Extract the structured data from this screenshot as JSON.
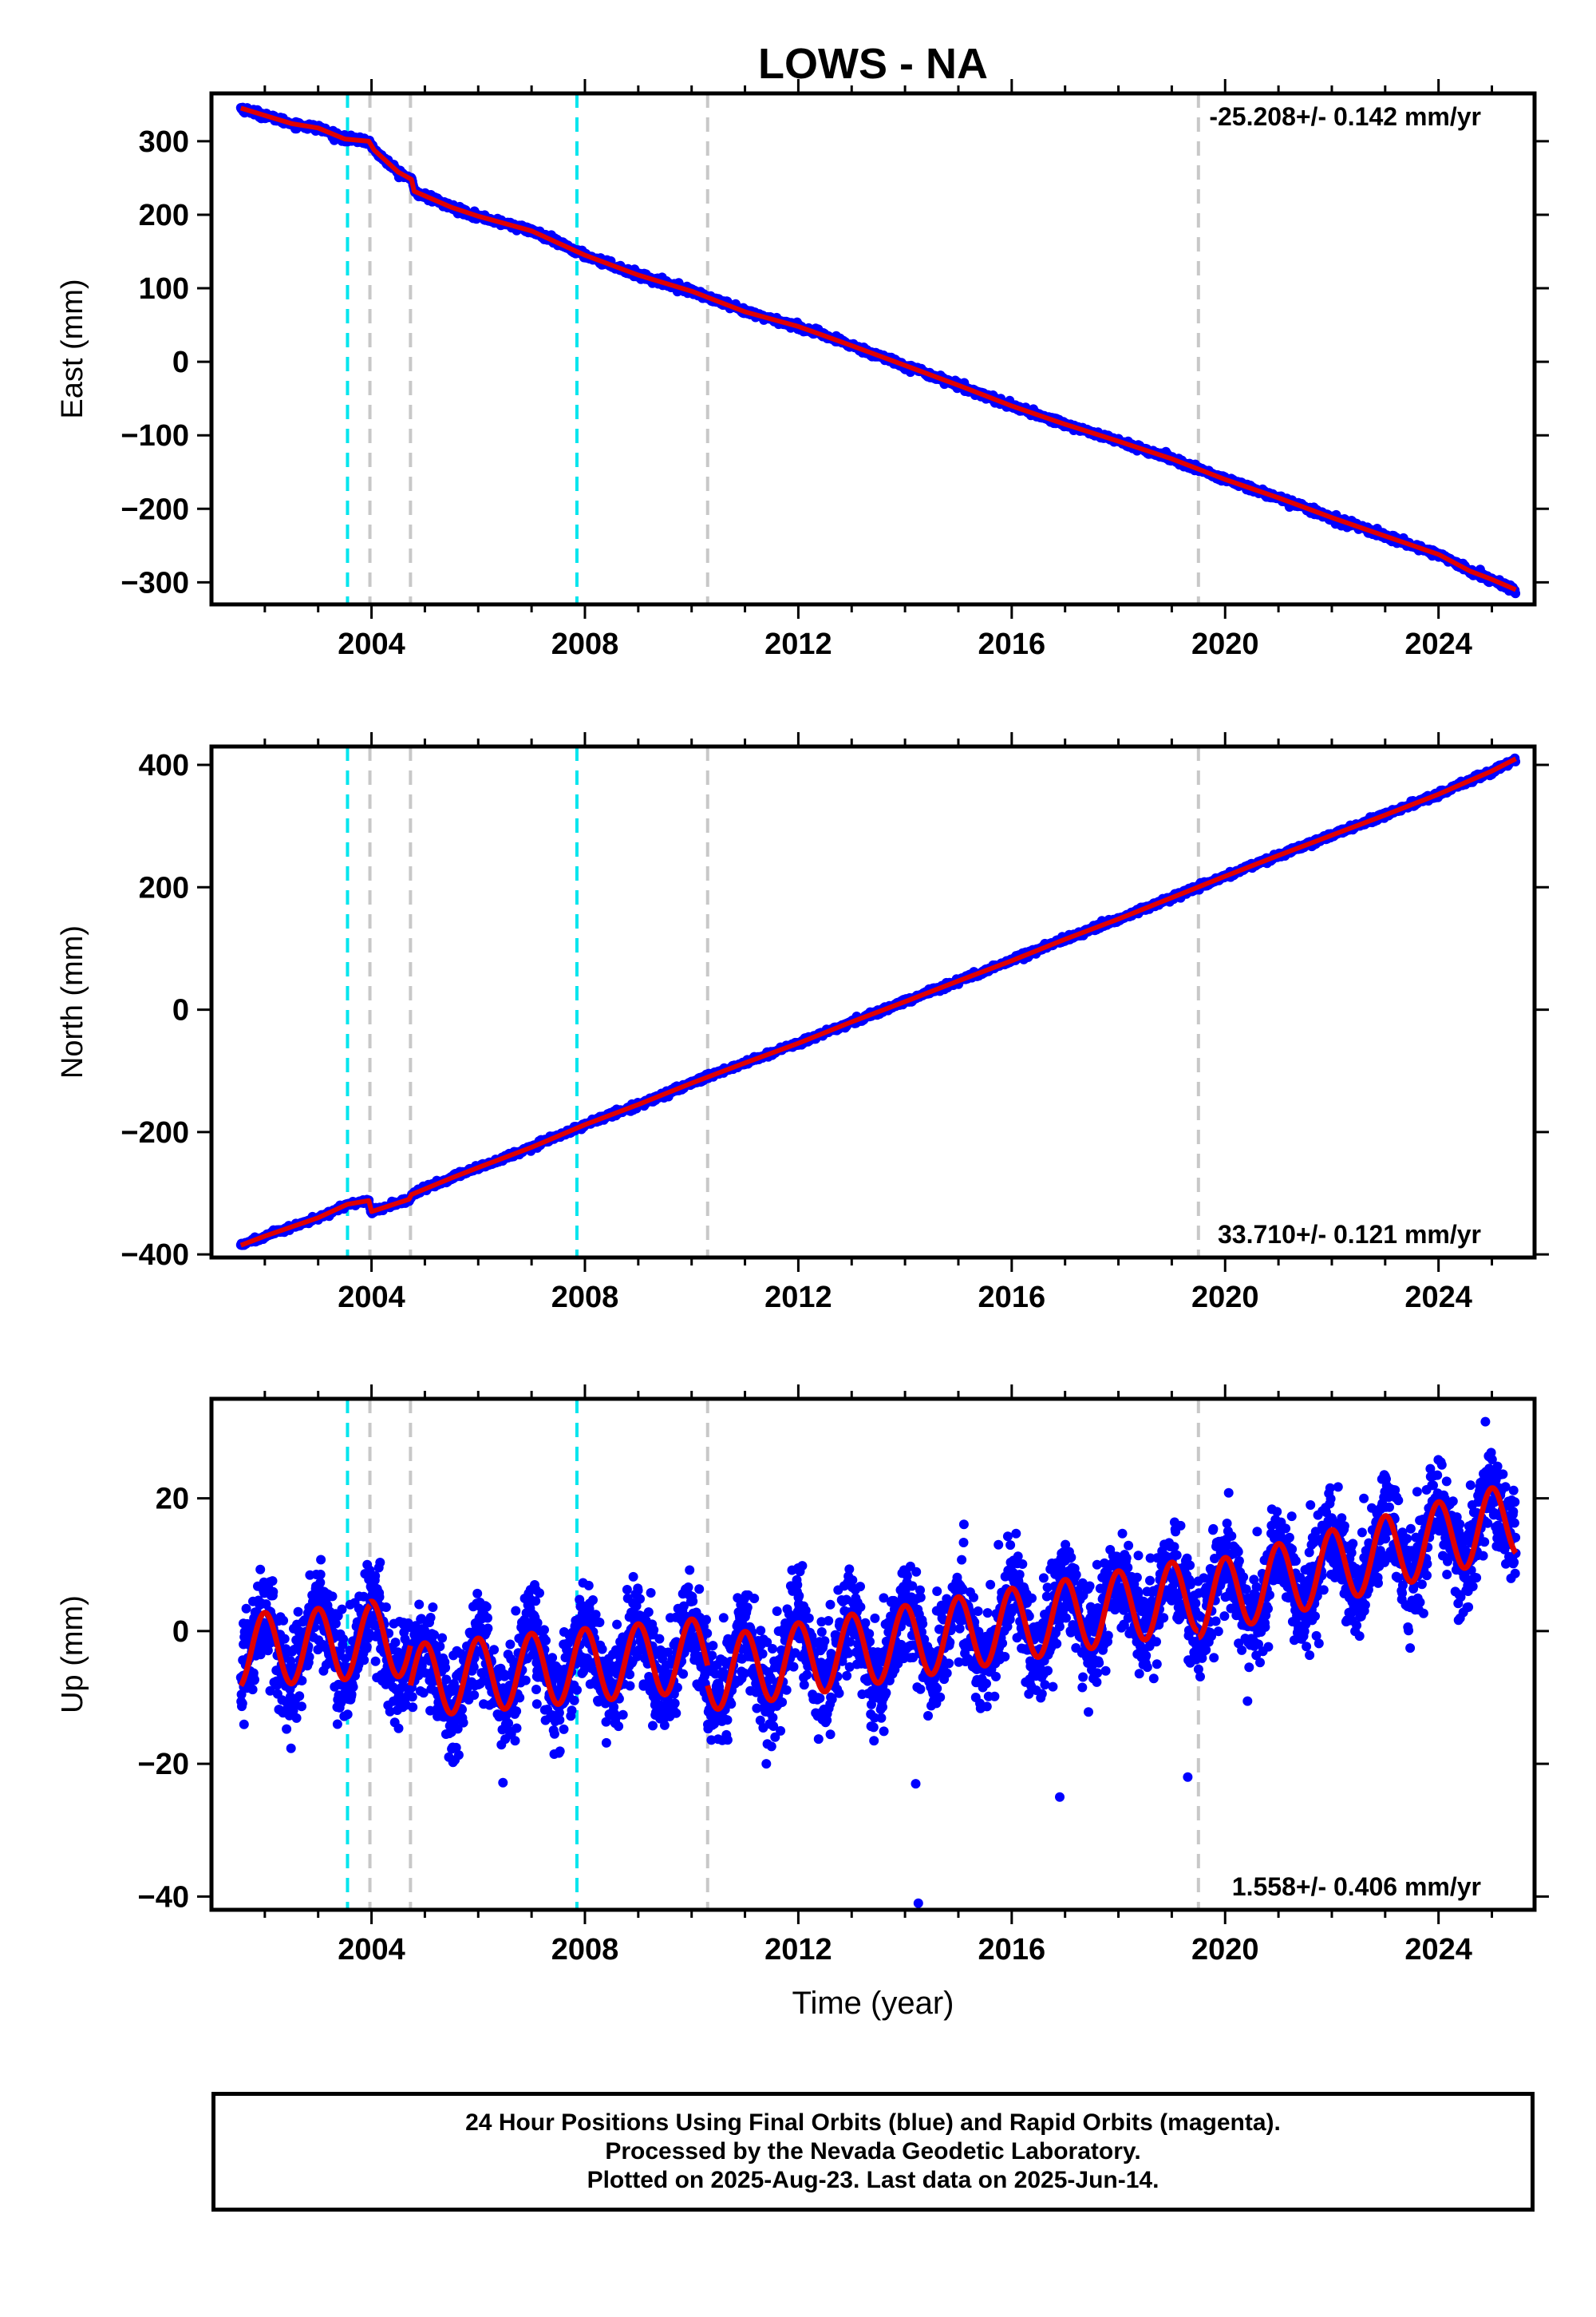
{
  "colors": {
    "data_points": "#0000ff",
    "model_fit": "#e00000",
    "antenna_change": "#00e5ee",
    "equipment_change": "#c8c8c8"
  },
  "chart_data": [
    {
      "type": "scatter",
      "title": "LOWS - NA",
      "xlabel": "",
      "ylabel": "East (mm)",
      "xlim": [
        2001.0,
        2025.8
      ],
      "ylim": [
        -330,
        365
      ],
      "x_ticks": [
        2004,
        2008,
        2012,
        2016,
        2020,
        2024
      ],
      "y_ticks": [
        -300,
        -200,
        -100,
        0,
        100,
        200,
        300
      ],
      "y_tick_labels": [
        "−300",
        "−200",
        "−100",
        "0",
        "100",
        "200",
        "300"
      ],
      "annotation": "-25.208+/- 0.142 mm/yr",
      "annotation_pos": "top-right",
      "grid": false,
      "series": [
        {
          "style": "points",
          "color": "data_points",
          "x": [
            2001.55,
            2002.0,
            2002.5,
            2003.0,
            2003.5,
            2003.95,
            2004.05,
            2004.5,
            2004.75,
            2004.8,
            2005.5,
            2006.0,
            2007.0,
            2008.0,
            2009.0,
            2010.0,
            2011.0,
            2012.0,
            2013.0,
            2014.0,
            2015.0,
            2016.0,
            2017.0,
            2018.0,
            2019.0,
            2020.0,
            2021.0,
            2022.0,
            2023.0,
            2024.0,
            2024.6,
            2025.0,
            2025.45
          ],
          "y": [
            345,
            335,
            324,
            318,
            303,
            300,
            288,
            258,
            248,
            232,
            210,
            198,
            178,
            145,
            118,
            96,
            68,
            48,
            22,
            -5,
            -32,
            -60,
            -85,
            -108,
            -132,
            -160,
            -185,
            -212,
            -237,
            -262,
            -285,
            -296,
            -312
          ]
        },
        {
          "style": "line",
          "color": "model_fit",
          "x": [
            2001.55,
            2002.0,
            2002.5,
            2003.0,
            2003.5,
            2003.95,
            2004.05,
            2004.5,
            2004.75,
            2004.8,
            2005.5,
            2006.0,
            2007.0,
            2008.0,
            2009.0,
            2010.0,
            2011.0,
            2012.0,
            2013.0,
            2014.0,
            2015.0,
            2016.0,
            2017.0,
            2018.0,
            2019.0,
            2020.0,
            2021.0,
            2022.0,
            2023.0,
            2024.0,
            2024.6,
            2025.0,
            2025.45
          ],
          "y": [
            345,
            335,
            324,
            318,
            303,
            300,
            288,
            258,
            248,
            232,
            210,
            198,
            178,
            145,
            118,
            96,
            68,
            48,
            22,
            -5,
            -32,
            -60,
            -85,
            -108,
            -132,
            -160,
            -185,
            -212,
            -237,
            -262,
            -285,
            -296,
            -310
          ]
        }
      ],
      "vlines": [
        {
          "x": 2003.55,
          "color": "antenna_change"
        },
        {
          "x": 2003.97,
          "color": "equipment_change"
        },
        {
          "x": 2004.73,
          "color": "equipment_change"
        },
        {
          "x": 2007.85,
          "color": "antenna_change"
        },
        {
          "x": 2010.3,
          "color": "equipment_change"
        },
        {
          "x": 2019.5,
          "color": "equipment_change"
        }
      ]
    },
    {
      "type": "scatter",
      "xlabel": "",
      "ylabel": "North (mm)",
      "xlim": [
        2001.0,
        2025.8
      ],
      "ylim": [
        -405,
        430
      ],
      "x_ticks": [
        2004,
        2008,
        2012,
        2016,
        2020,
        2024
      ],
      "y_ticks": [
        -400,
        -200,
        0,
        200,
        400
      ],
      "y_tick_labels": [
        "−400",
        "−200",
        "0",
        "200",
        "400"
      ],
      "annotation": "33.710+/- 0.121 mm/yr",
      "annotation_pos": "bottom-right",
      "grid": false,
      "series": [
        {
          "style": "points",
          "color": "data_points",
          "x": [
            2001.55,
            2002.0,
            2002.5,
            2003.0,
            2003.55,
            2003.95,
            2004.0,
            2004.7,
            2004.75,
            2005.5,
            2006.0,
            2007.0,
            2008.0,
            2009.0,
            2010.0,
            2011.0,
            2012.0,
            2013.0,
            2014.0,
            2015.0,
            2016.0,
            2017.0,
            2018.0,
            2019.0,
            2020.0,
            2021.0,
            2022.0,
            2023.0,
            2024.0,
            2024.6,
            2025.0,
            2025.45
          ],
          "y": [
            -385,
            -370,
            -355,
            -340,
            -318,
            -312,
            -330,
            -310,
            -302,
            -275,
            -258,
            -225,
            -188,
            -155,
            -120,
            -87,
            -55,
            -20,
            13,
            47,
            80,
            115,
            148,
            183,
            218,
            252,
            285,
            318,
            352,
            375,
            390,
            410
          ]
        },
        {
          "style": "line",
          "color": "model_fit",
          "x": [
            2001.55,
            2002.0,
            2002.5,
            2003.0,
            2003.55,
            2003.95,
            2004.0,
            2004.7,
            2004.75,
            2005.5,
            2006.0,
            2007.0,
            2008.0,
            2009.0,
            2010.0,
            2011.0,
            2012.0,
            2013.0,
            2014.0,
            2015.0,
            2016.0,
            2017.0,
            2018.0,
            2019.0,
            2020.0,
            2021.0,
            2022.0,
            2023.0,
            2024.0,
            2024.6,
            2025.0,
            2025.45
          ],
          "y": [
            -385,
            -370,
            -355,
            -340,
            -318,
            -312,
            -330,
            -310,
            -302,
            -275,
            -258,
            -225,
            -188,
            -155,
            -120,
            -87,
            -55,
            -20,
            13,
            47,
            80,
            115,
            148,
            183,
            218,
            252,
            285,
            318,
            352,
            375,
            390,
            410
          ]
        }
      ],
      "vlines": [
        {
          "x": 2003.55,
          "color": "antenna_change"
        },
        {
          "x": 2003.97,
          "color": "equipment_change"
        },
        {
          "x": 2004.73,
          "color": "equipment_change"
        },
        {
          "x": 2007.85,
          "color": "antenna_change"
        },
        {
          "x": 2010.3,
          "color": "equipment_change"
        },
        {
          "x": 2019.5,
          "color": "equipment_change"
        }
      ]
    },
    {
      "type": "scatter",
      "xlabel": "Time (year)",
      "ylabel": "Up (mm)",
      "xlim": [
        2001.0,
        2025.8
      ],
      "ylim": [
        -42,
        35
      ],
      "x_ticks": [
        2004,
        2008,
        2012,
        2016,
        2020,
        2024
      ],
      "y_ticks": [
        -40,
        -20,
        0,
        20
      ],
      "y_tick_labels": [
        "−40",
        "−20",
        "0",
        "20"
      ],
      "annotation": "1.558+/- 0.406 mm/yr",
      "annotation_pos": "bottom-right",
      "grid": false,
      "seasonal_fit": {
        "amplitude": 5.5,
        "phase_year_fraction": 0.75,
        "segments": [
          {
            "x0": 2001.55,
            "x1": 2003.97,
            "y0": -3.0,
            "y1": -1.5
          },
          {
            "x0": 2003.97,
            "x1": 2004.73,
            "y0": -1.0,
            "y1": -1.5
          },
          {
            "x0": 2004.73,
            "x1": 2010.3,
            "y0": -7.5,
            "y1": -3.5
          },
          {
            "x0": 2010.3,
            "x1": 2019.5,
            "y0": -6.5,
            "y1": 5.5
          },
          {
            "x0": 2019.5,
            "x1": 2025.45,
            "y0": 4.5,
            "y1": 17.0
          }
        ]
      },
      "series": [
        {
          "style": "points",
          "color": "data_points",
          "x": [
            2001.6,
            2002.1,
            2002.6,
            2003.1,
            2003.6,
            2004.1,
            2004.6,
            2005.1,
            2005.6,
            2006.1,
            2006.6,
            2007.1,
            2007.6,
            2008.1,
            2008.6,
            2009.1,
            2009.6,
            2010.1,
            2010.6,
            2011.1,
            2011.6,
            2012.1,
            2012.6,
            2013.1,
            2013.6,
            2014.1,
            2014.6,
            2015.1,
            2015.6,
            2016.1,
            2016.6,
            2017.1,
            2017.6,
            2018.1,
            2018.6,
            2019.1,
            2019.6,
            2020.1,
            2020.6,
            2021.1,
            2021.6,
            2022.1,
            2022.6,
            2023.1,
            2023.6,
            2024.1,
            2024.6,
            2025.1,
            2025.4,
            2014.25,
            2014.2,
            2016.9,
            2019.3,
            2011.4
          ],
          "y": [
            -2,
            -9,
            1,
            -6,
            4,
            -7,
            1,
            -12,
            -3,
            -11,
            -2,
            -11,
            -2,
            -8,
            1,
            -8,
            2,
            -8,
            2,
            -9,
            3,
            -7,
            4,
            -5,
            5,
            -4,
            6,
            -2,
            7,
            -1,
            8,
            0,
            10,
            1,
            11,
            2,
            8,
            6,
            15,
            9,
            19,
            11,
            20,
            12,
            21,
            13,
            22,
            15,
            18,
            -41,
            -23,
            -25,
            -22,
            -20
          ]
        }
      ],
      "vlines": [
        {
          "x": 2003.55,
          "color": "antenna_change"
        },
        {
          "x": 2003.97,
          "color": "equipment_change"
        },
        {
          "x": 2004.73,
          "color": "equipment_change"
        },
        {
          "x": 2007.85,
          "color": "antenna_change"
        },
        {
          "x": 2010.3,
          "color": "equipment_change"
        },
        {
          "x": 2019.5,
          "color": "equipment_change"
        }
      ]
    }
  ],
  "footer": {
    "line1": "24 Hour Positions Using Final Orbits (blue) and Rapid Orbits (magenta).",
    "line2": "Processed by the Nevada Geodetic Laboratory.",
    "line3": "Plotted on 2025-Aug-23. Last data on 2025-Jun-14."
  }
}
